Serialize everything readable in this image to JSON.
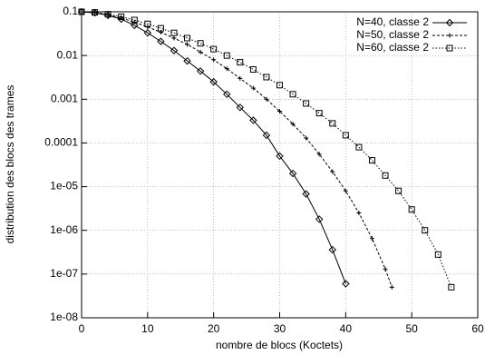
{
  "chart_data": {
    "type": "line",
    "x_label": "nombre de blocs (Koctets)",
    "y_label": "distribution des blocs des trames",
    "log_y": true,
    "grid": true,
    "legend": "top-right",
    "xlim": [
      0,
      60
    ],
    "xticks": [
      0,
      10,
      20,
      30,
      40,
      50,
      60
    ],
    "ylim": [
      1e-08,
      0.1
    ],
    "yticks": [
      0.1,
      0.01,
      0.001,
      0.0001,
      {
        "value": 1e-05,
        "label": "1e-05"
      },
      {
        "value": 1e-06,
        "label": "1e-06"
      },
      {
        "value": 1e-07,
        "label": "1e-07"
      },
      {
        "value": 1e-08,
        "label": "1e-08"
      }
    ],
    "series": [
      {
        "name": "N=40, classe 2",
        "color": "#000000",
        "marker": "diamond",
        "line_style": "solid",
        "x": [
          0,
          2,
          4,
          6,
          8,
          10,
          12,
          14,
          16,
          18,
          20,
          22,
          24,
          26,
          28,
          30,
          32,
          34,
          36,
          38,
          40
        ],
        "values": [
          0.1,
          0.095,
          0.083,
          0.068,
          0.049,
          0.033,
          0.021,
          0.013,
          0.0075,
          0.0044,
          0.0025,
          0.0013,
          0.00065,
          0.00033,
          0.00015,
          5e-05,
          2e-05,
          6.8e-06,
          1.8e-06,
          3.6e-07,
          6e-08
        ]
      },
      {
        "name": "N=50, classe 2",
        "color": "#000000",
        "marker": "plus",
        "line_style": "dashed",
        "x": [
          0,
          2,
          4,
          6,
          8,
          10,
          12,
          14,
          16,
          18,
          20,
          22,
          24,
          26,
          28,
          30,
          32,
          34,
          36,
          38,
          40,
          42,
          44,
          46,
          47
        ],
        "values": [
          0.1,
          0.096,
          0.085,
          0.072,
          0.058,
          0.045,
          0.034,
          0.025,
          0.018,
          0.012,
          0.008,
          0.005,
          0.003,
          0.0018,
          0.001,
          0.00053,
          0.00027,
          0.00013,
          5.5e-05,
          2.2e-05,
          8e-06,
          2.5e-06,
          6.5e-07,
          1.3e-07,
          5e-08
        ]
      },
      {
        "name": "N=60, classe 2",
        "color": "#000000",
        "marker": "square",
        "line_style": "dotted",
        "x": [
          0,
          2,
          4,
          6,
          8,
          10,
          12,
          14,
          16,
          18,
          20,
          22,
          24,
          26,
          28,
          30,
          32,
          34,
          36,
          38,
          40,
          42,
          44,
          46,
          48,
          50,
          52,
          54,
          56
        ],
        "values": [
          0.1,
          0.097,
          0.088,
          0.077,
          0.065,
          0.053,
          0.042,
          0.033,
          0.025,
          0.019,
          0.014,
          0.01,
          0.007,
          0.0048,
          0.0032,
          0.0021,
          0.0013,
          0.0008,
          0.00048,
          0.00028,
          0.00015,
          8e-05,
          4e-05,
          1.8e-05,
          8e-06,
          3e-06,
          1e-06,
          2.8e-07,
          5e-08
        ]
      }
    ]
  }
}
